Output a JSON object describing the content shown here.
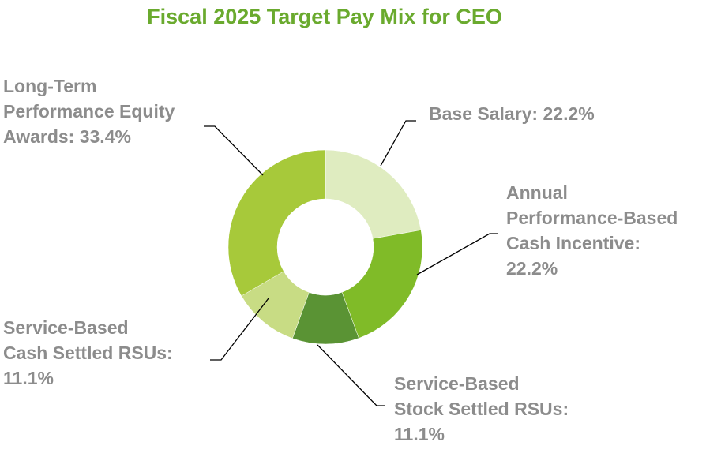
{
  "chart_data": {
    "type": "pie",
    "subtype": "donut",
    "title": "Fiscal 2025 Target Pay Mix for CEO",
    "title_color": "#6aaa2e",
    "label_color": "#8c8c8c",
    "slices": [
      {
        "name": "Base Salary",
        "value": 22.2,
        "color": "#dfecc0",
        "label_lines": [
          "Base Salary: 22.2%"
        ]
      },
      {
        "name": "Annual Performance-Based Cash Incentive",
        "value": 22.2,
        "color": "#80bb28",
        "label_lines": [
          "Annual",
          "Performance-Based",
          "Cash Incentive:",
          "22.2%"
        ]
      },
      {
        "name": "Service-Based Stock Settled RSUs",
        "value": 11.1,
        "color": "#5a9334",
        "label_lines": [
          "Service-Based",
          "Stock Settled RSUs:",
          "11.1%"
        ]
      },
      {
        "name": "Service-Based Cash Settled RSUs",
        "value": 11.1,
        "color": "#c8dc84",
        "label_lines": [
          "Service-Based",
          "Cash Settled RSUs:",
          "11.1%"
        ]
      },
      {
        "name": "Long-Term Performance Equity Awards",
        "value": 33.4,
        "color": "#a7c93a",
        "label_lines": [
          "Long-Term",
          "Performance Equity",
          "Awards: 33.4%"
        ]
      }
    ]
  }
}
